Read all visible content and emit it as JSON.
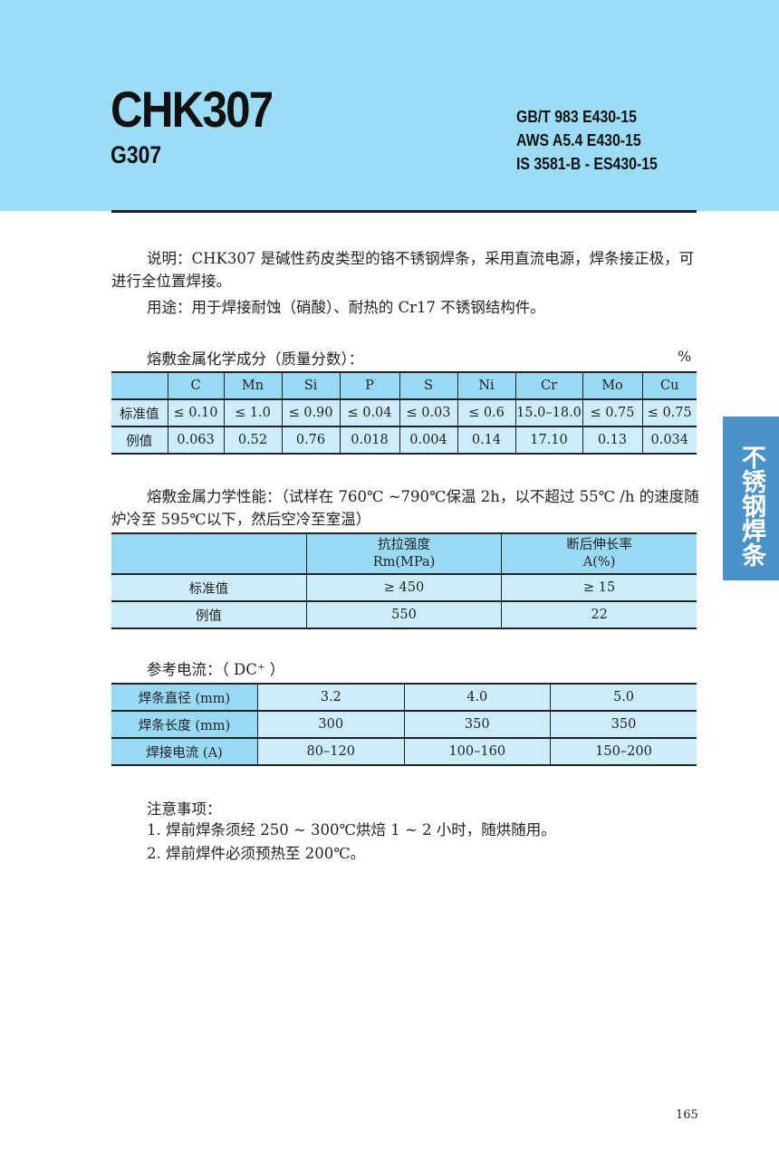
{
  "header": {
    "title": "CHK307",
    "subtitle": "G307",
    "standards": [
      "GB/T 983 E430-15",
      "AWS A5.4 E430-15",
      "IS 3581-B - ES430-15"
    ]
  },
  "desc": {
    "label": "说明：",
    "text": "CHK307 是碱性药皮类型的铬不锈钢焊条，采用直流电源，焊条接正极，可进行全位置焊接。",
    "use_label": "用途：",
    "use_text": "用于焊接耐蚀（硝酸）、耐热的 Cr17 不锈钢结构件。"
  },
  "chem": {
    "title": "熔敷金属化学成分（质量分数）：",
    "unit": "%",
    "headers": [
      "",
      "C",
      "Mn",
      "Si",
      "P",
      "S",
      "Ni",
      "Cr",
      "Mo",
      "Cu"
    ],
    "rows": [
      [
        "标准值",
        "≤ 0.10",
        "≤ 1.0",
        "≤ 0.90",
        "≤ 0.04",
        "≤ 0.03",
        "≤ 0.6",
        "15.0–18.0",
        "≤ 0.75",
        "≤ 0.75"
      ],
      [
        "例值",
        "0.063",
        "0.52",
        "0.76",
        "0.018",
        "0.004",
        "0.14",
        "17.10",
        "0.13",
        "0.034"
      ]
    ]
  },
  "mech": {
    "title": "熔敷金属力学性能：",
    "note": "（试样在 760℃ ~790℃保温 2h，以不超过 55℃ /h 的速度随炉冷至 595℃以下，然后空冷至室温）",
    "headers": [
      "",
      [
        "抗拉强度",
        "Rm(MPa)"
      ],
      [
        "断后伸长率",
        "A(%)"
      ]
    ],
    "rows": [
      [
        "标准值",
        "≥ 450",
        "≥ 15"
      ],
      [
        "例值",
        "550",
        "22"
      ]
    ]
  },
  "current": {
    "title": "参考电流：",
    "note": "（ DC⁺ ）",
    "rows": [
      [
        "焊条直径 (mm)",
        "3.2",
        "4.0",
        "5.0"
      ],
      [
        "焊条长度 (mm)",
        "300",
        "350",
        "350"
      ],
      [
        "焊接电流 (A)",
        "80–120",
        "100–160",
        "150–200"
      ]
    ]
  },
  "notes": {
    "title": "注意事项：",
    "items": [
      "1. 焊前焊条须经 250 ~ 300℃烘焙 1 ~ 2 小时，随烘随用。",
      "2. 焊前焊件必须预热至 200℃。"
    ]
  },
  "side_tab": "不锈钢焊条",
  "page_number": "165",
  "colors": {
    "band": "#9cdcf6",
    "table_header": "#98d9f3",
    "table_body": "#ccedfa",
    "side_tab": "#4a93c8"
  }
}
